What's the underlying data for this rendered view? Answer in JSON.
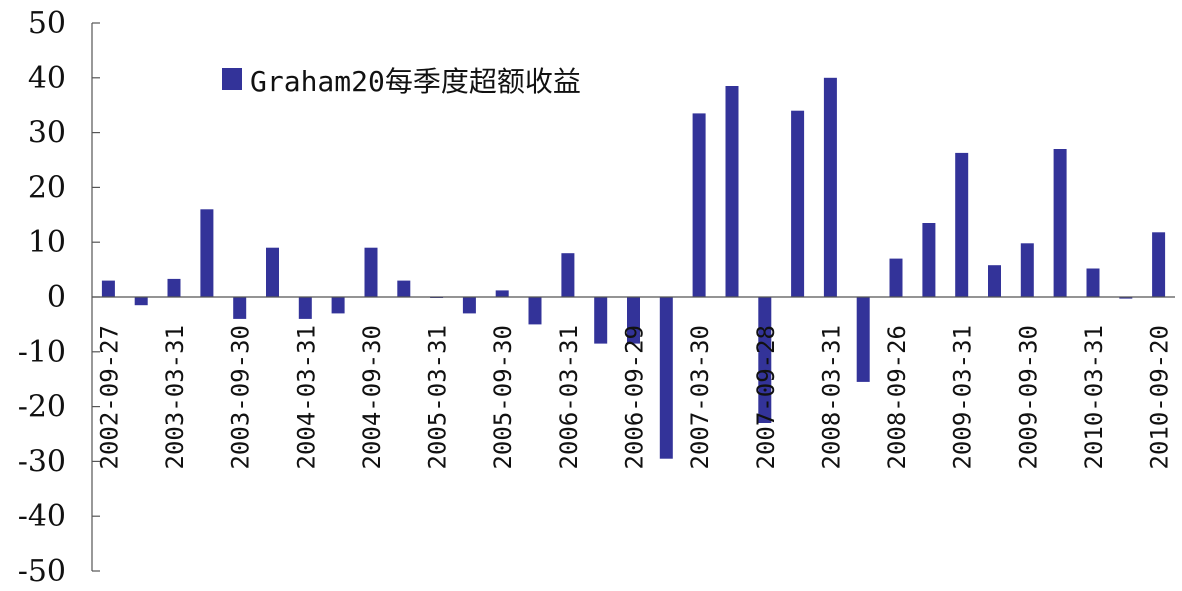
{
  "chart_data": {
    "type": "bar",
    "legend": {
      "label": "Graham20每季度超额收益",
      "color": "#333399",
      "position": "top-left"
    },
    "ylim": [
      -50,
      50
    ],
    "yticks": [
      "50",
      "40",
      "30",
      "20",
      "10",
      "0",
      "-10",
      "-20",
      "-30",
      "-40",
      "-50"
    ],
    "ytick_values": [
      50,
      40,
      30,
      20,
      10,
      0,
      -10,
      -20,
      -30,
      -40,
      -50
    ],
    "xtick_labels": [
      "2002-09-27",
      "2003-03-31",
      "2003-09-30",
      "2004-03-31",
      "2004-09-30",
      "2005-03-31",
      "2005-09-30",
      "2006-03-31",
      "2006-09-29",
      "2007-03-30",
      "2007-09-28",
      "2008-03-31",
      "2008-09-26",
      "2009-03-31",
      "2009-09-30",
      "2010-03-31",
      "2010-09-20"
    ],
    "values": [
      3,
      -1.5,
      3.3,
      16,
      -4,
      9,
      -4,
      -3,
      9,
      3,
      0,
      -3,
      1.2,
      -5,
      8,
      -8.5,
      -8.5,
      -29.5,
      33.5,
      38.5,
      -23,
      34,
      40,
      -15.5,
      7,
      13.5,
      26.3,
      5.8,
      9.8,
      27,
      5.2,
      -0.3,
      11.8
    ],
    "bar_color": "#333399",
    "grid": false
  }
}
